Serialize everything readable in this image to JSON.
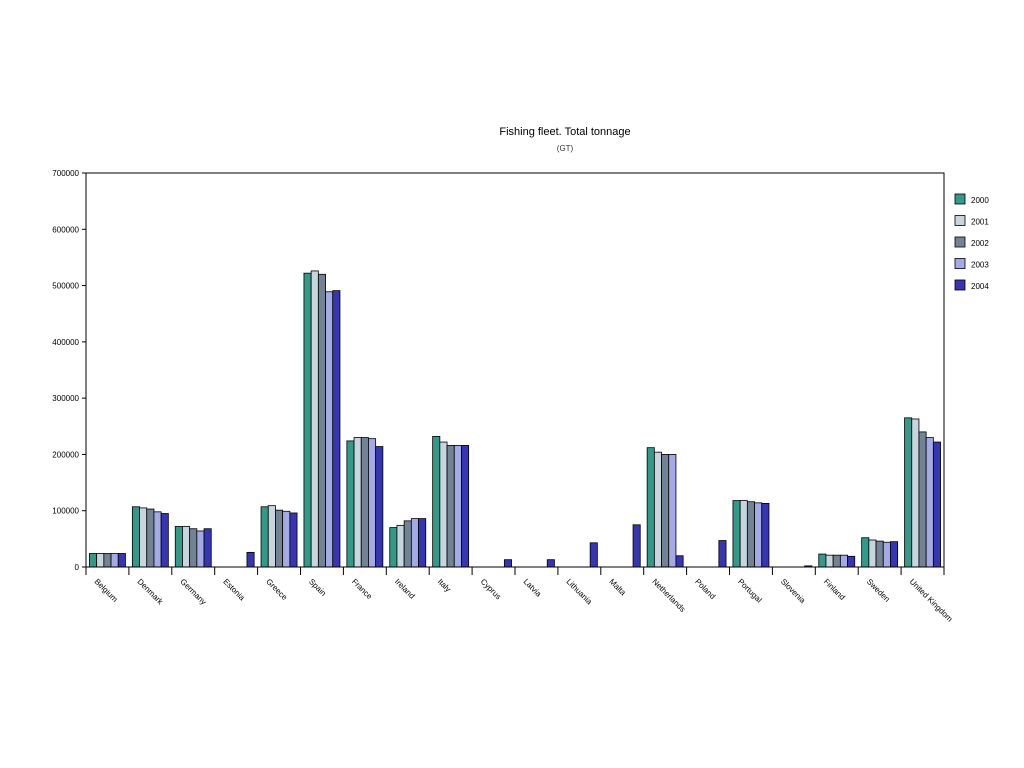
{
  "chart_data": {
    "type": "bar",
    "title": "Fishing fleet. Total tonnage",
    "subtitle": "(GT)",
    "xlabel": "",
    "ylabel": "",
    "ylim": [
      0,
      700000
    ],
    "yticks": [
      "0",
      "100000",
      "200000",
      "300000",
      "400000",
      "500000",
      "600000",
      "700000"
    ],
    "grid": false,
    "legend_position": "right",
    "categories": [
      "Belgium",
      "Denmark",
      "Germany",
      "Estonia",
      "Greece",
      "Spain",
      "France",
      "Ireland",
      "Italy",
      "Cyprus",
      "Latvia",
      "Lithuania",
      "Malta",
      "Netherlands",
      "Poland",
      "Portugal",
      "Slovenia",
      "Finland",
      "Sweden",
      "United Kingdom"
    ],
    "series": [
      {
        "name": "2000",
        "color": "#339988",
        "values": [
          24000,
          107000,
          72000,
          0,
          107000,
          522000,
          224000,
          70000,
          232000,
          0,
          0,
          0,
          0,
          212000,
          0,
          118000,
          0,
          23000,
          52000,
          265000
        ]
      },
      {
        "name": "2001",
        "color": "#c8d4de",
        "values": [
          24000,
          105000,
          72000,
          0,
          109000,
          526000,
          230000,
          74000,
          222000,
          0,
          0,
          0,
          0,
          204000,
          0,
          118000,
          0,
          21000,
          48000,
          263000
        ]
      },
      {
        "name": "2002",
        "color": "#728494",
        "values": [
          24000,
          103000,
          68000,
          0,
          101000,
          520000,
          230000,
          82000,
          216000,
          0,
          0,
          0,
          0,
          200000,
          0,
          116000,
          0,
          21000,
          46000,
          240000
        ]
      },
      {
        "name": "2003",
        "color": "#a4abe4",
        "values": [
          24000,
          98000,
          64000,
          0,
          99000,
          489000,
          228000,
          86000,
          216000,
          0,
          0,
          0,
          0,
          200000,
          0,
          114000,
          0,
          21000,
          44000,
          230000
        ]
      },
      {
        "name": "2004",
        "color": "#3636b2",
        "values": [
          24000,
          95000,
          68000,
          26000,
          96000,
          491000,
          214000,
          86000,
          216000,
          13000,
          13000,
          43000,
          75000,
          20000,
          47000,
          113000,
          2000,
          19000,
          45000,
          222000
        ]
      }
    ]
  }
}
